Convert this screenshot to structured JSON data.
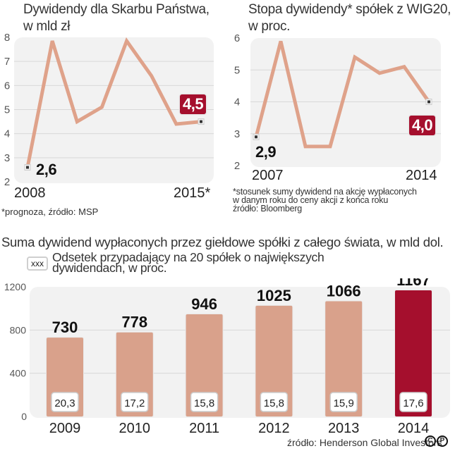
{
  "charts": {
    "left": {
      "title_line1": "Dywidendy dla Skarbu Państwa,",
      "title_line2": "w mld zł",
      "note": "*prognoza, źródło: MSP",
      "first_label": "2008",
      "last_label": "2015*",
      "first_value_label": "2,6",
      "last_value_label": "4,5"
    },
    "right": {
      "title_line1": "Stopa dywidendy* spółek z WIG20,",
      "title_line2": "w proc.",
      "note_line1": "*stosunek sumy dywidend na akcję wypłaconych",
      "note_line2": "w danym roku do ceny akcji z końca roku",
      "note_line3": "źródło: Bloomberg",
      "first_label": "2007",
      "last_label": "2014",
      "first_value_label": "2,9",
      "last_value_label": "4,0"
    },
    "bottom": {
      "title": "Suma dywidend wypłaconych przez giełdowe spółki z całego świata, w mld dol.",
      "legend_box": "xxx",
      "legend_line1": "Odsetek przypadający na 20 spółek o największych",
      "legend_line2": "dywidendach, w proc.",
      "source": "źródło: Henderson Global Investors",
      "logo": "CP"
    }
  },
  "colors": {
    "line": "#dfa28a",
    "bar": "#d9a18b",
    "bar_highlight": "#a50f2d",
    "panel_bg": "#f2f2f2",
    "grid": "#d8d8d8"
  },
  "chart_data": [
    {
      "type": "line",
      "title": "Dywidendy dla Skarbu Państwa, w mld zł",
      "x": [
        "2008",
        "2009",
        "2010",
        "2011",
        "2012",
        "2013",
        "2014",
        "2015*"
      ],
      "values": [
        2.6,
        7.85,
        4.5,
        5.1,
        7.85,
        6.4,
        4.4,
        4.5
      ],
      "ylim": [
        2,
        8
      ],
      "yticks": [
        "2",
        "3",
        "4",
        "5",
        "6",
        "7",
        "8"
      ],
      "xtick_labels_shown": [
        "2008",
        "2015*"
      ],
      "data_labels": [
        {
          "x": "2008",
          "text": "2,6"
        },
        {
          "x": "2015*",
          "text": "4,5",
          "highlight": true
        }
      ],
      "grid": true,
      "annotation": "*prognoza, źródło: MSP"
    },
    {
      "type": "line",
      "title": "Stopa dywidendy* spółek z WIG20, w proc.",
      "x": [
        "2007",
        "2008",
        "2009",
        "2010",
        "2011",
        "2012",
        "2013",
        "2014"
      ],
      "values": [
        2.9,
        5.9,
        2.6,
        2.6,
        5.4,
        4.9,
        5.1,
        4.0
      ],
      "ylim": [
        2,
        6
      ],
      "yticks": [
        "2",
        "3",
        "4",
        "5",
        "6"
      ],
      "xtick_labels_shown": [
        "2007",
        "2014"
      ],
      "data_labels": [
        {
          "x": "2007",
          "text": "2,9"
        },
        {
          "x": "2014",
          "text": "4,0",
          "highlight": true
        }
      ],
      "grid": true,
      "annotation": "*stosunek sumy dywidend na akcję wypłaconych w danym roku do ceny akcji z końca roku; źródło: Bloomberg"
    },
    {
      "type": "bar",
      "title": "Suma dywidend wypłaconych przez giełdowe spółki z całego świata, w mld dol.",
      "categories": [
        "2009",
        "2010",
        "2011",
        "2012",
        "2013",
        "2014"
      ],
      "values": [
        730,
        778,
        946,
        1025,
        1066,
        1167
      ],
      "value_labels": [
        "730",
        "778",
        "946",
        "1025",
        "1066",
        "1167"
      ],
      "secondary_labels": [
        "20,3",
        "17,2",
        "15,8",
        "15,8",
        "15,9",
        "17,6"
      ],
      "secondary_label_meaning": "Odsetek przypadający na 20 spółek o największych dywidendach, w proc.",
      "highlight_category": "2014",
      "ylim": [
        0,
        1200
      ],
      "yticks": [
        "0",
        "400",
        "800",
        "1200"
      ],
      "grid": true,
      "legend": "top-left",
      "source": "źródło: Henderson Global Investors"
    }
  ]
}
